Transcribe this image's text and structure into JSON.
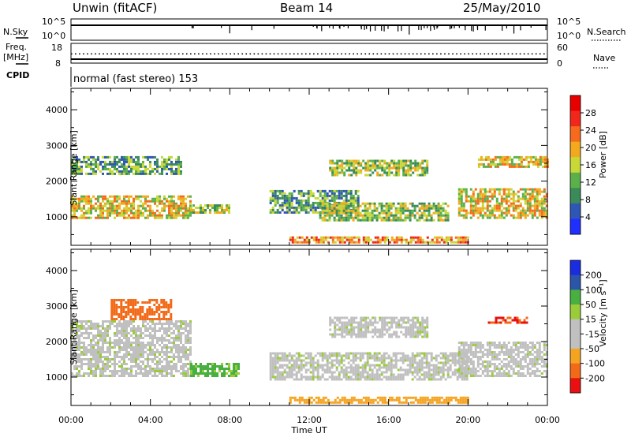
{
  "header": {
    "station": "Unwin (fitACF)",
    "beam": "Beam 14",
    "date": "25/May/2010"
  },
  "params": {
    "nsky_label": "N.Sky",
    "nsky_ticks": [
      "10^5",
      "10^0"
    ],
    "nsearch_label": "N.Search",
    "nsearch_ticks": [
      "10^5",
      "10^0"
    ],
    "freq_label": "Freq.",
    "freq_unit": "[MHz]",
    "freq_ticks": [
      "18",
      "8"
    ],
    "nave_label": "Nave",
    "nave_ticks": [
      "60",
      "0"
    ],
    "cpid_label": "CPID",
    "cpid_text": "normal (fast stereo) 153"
  },
  "colors": {
    "power": [
      "#1f2fff",
      "#2f56b4",
      "#3a8a5a",
      "#5bb04a",
      "#c8d836",
      "#f3a91d",
      "#f56a1c",
      "#f2271b",
      "#e80000"
    ],
    "velocity": [
      "#e81010",
      "#f26a18",
      "#f5a422",
      "#c0c0c0",
      "#c0c0c0",
      "#9acc3a",
      "#48b040",
      "#2c54a8",
      "#1a2ce0"
    ]
  },
  "chart_data": [
    {
      "type": "heatmap",
      "name": "power",
      "xlabel": "",
      "ylabel": "Slant Range [km]",
      "ylim": [
        200,
        4600
      ],
      "yticks": [
        "1000",
        "2000",
        "3000",
        "4000"
      ],
      "xticks": [
        "00:00",
        "04:00",
        "08:00",
        "12:00",
        "16:00",
        "20:00",
        "00:00"
      ],
      "colorbar_label": "Power [dB]",
      "colorbar_ticks": [
        "28",
        "24",
        "20",
        "16",
        "12",
        "8",
        "4"
      ],
      "echo_regions": [
        {
          "t": [
            0.0,
            6.0
          ],
          "range": [
            950,
            1600
          ],
          "level": 20
        },
        {
          "t": [
            0.0,
            5.5
          ],
          "range": [
            2200,
            2700
          ],
          "level": 12
        },
        {
          "t": [
            6.0,
            8.0
          ],
          "range": [
            1100,
            1350
          ],
          "level": 16
        },
        {
          "t": [
            10.0,
            14.5
          ],
          "range": [
            1100,
            1750
          ],
          "level": 12
        },
        {
          "t": [
            12.5,
            19.0
          ],
          "range": [
            900,
            1400
          ],
          "level": 16
        },
        {
          "t": [
            13.0,
            18.0
          ],
          "range": [
            2200,
            2600
          ],
          "level": 16
        },
        {
          "t": [
            19.5,
            24.0
          ],
          "range": [
            1000,
            1800
          ],
          "level": 20
        },
        {
          "t": [
            20.5,
            24.0
          ],
          "range": [
            2400,
            2700
          ],
          "level": 20
        },
        {
          "t": [
            11.0,
            20.0
          ],
          "range": [
            300,
            450
          ],
          "level": 24
        }
      ]
    },
    {
      "type": "heatmap",
      "name": "velocity",
      "xlabel": "Time UT",
      "ylabel": "Slant Range [km]",
      "ylim": [
        200,
        4600
      ],
      "yticks": [
        "1000",
        "2000",
        "3000",
        "4000"
      ],
      "xticks": [
        "00:00",
        "04:00",
        "08:00",
        "12:00",
        "16:00",
        "20:00",
        "00:00"
      ],
      "colorbar_label": "Velocity [m s⁻¹]",
      "colorbar_ticks": [
        "200",
        "100",
        "50",
        "15",
        "-15",
        "-50",
        "-100",
        "-200"
      ],
      "echo_regions": [
        {
          "t": [
            0.0,
            6.0
          ],
          "range": [
            1000,
            2600
          ],
          "level": 0
        },
        {
          "t": [
            6.0,
            8.5
          ],
          "range": [
            1050,
            1400
          ],
          "level": 60
        },
        {
          "t": [
            2.0,
            5.0
          ],
          "range": [
            2600,
            3200
          ],
          "level": -150
        },
        {
          "t": [
            10.0,
            20.0
          ],
          "range": [
            900,
            1700
          ],
          "level": 0
        },
        {
          "t": [
            13.0,
            18.0
          ],
          "range": [
            2100,
            2700
          ],
          "level": 0
        },
        {
          "t": [
            19.5,
            24.0
          ],
          "range": [
            1000,
            2000
          ],
          "level": 0
        },
        {
          "t": [
            21.0,
            23.0
          ],
          "range": [
            2500,
            2700
          ],
          "level": -200
        },
        {
          "t": [
            11.0,
            20.0
          ],
          "range": [
            250,
            450
          ],
          "level": -80
        }
      ]
    }
  ]
}
